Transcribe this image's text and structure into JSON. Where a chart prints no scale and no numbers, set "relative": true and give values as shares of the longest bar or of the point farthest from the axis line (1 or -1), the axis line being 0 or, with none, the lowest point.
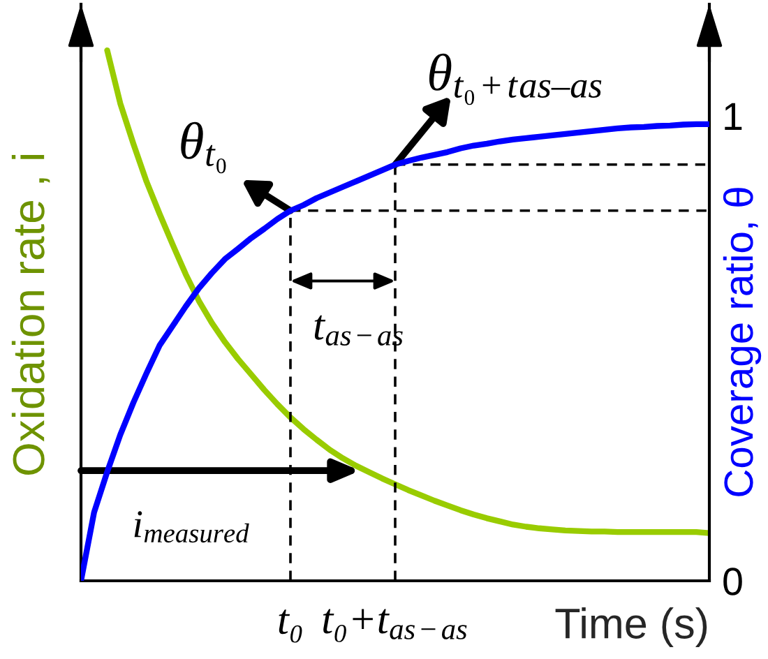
{
  "chart_data": {
    "type": "line",
    "xlabel": "Time (s)",
    "ylabel": "Oxidation rate , i",
    "y2label": "Coverage ratio, θ",
    "categories": [
      null,
      null,
      null,
      null,
      null,
      null,
      null,
      null,
      null,
      null,
      null,
      null,
      null,
      null,
      null,
      null,
      "t₀",
      null,
      null,
      null,
      null,
      null,
      null,
      null,
      "t₀+t$_{as−as}$",
      null,
      null,
      null,
      null,
      null,
      null,
      null,
      null,
      null,
      null,
      null,
      null,
      null,
      null,
      null,
      null,
      null,
      null,
      null,
      null,
      null,
      null,
      null,
      null
    ],
    "relative": true,
    "y2lim": [
      0,
      1.24
    ],
    "y2ticks": [
      0,
      1
    ],
    "series": [
      {
        "color": "#99cc00",
        "values": [
          null,
          null,
          1,
          0.9,
          0.824,
          0.753,
          0.692,
          0.634,
          0.578,
          0.528,
          0.486,
          0.45,
          0.418,
          0.389,
          0.36,
          0.333,
          0.308,
          0.286,
          0.266,
          0.247,
          0.231,
          0.217,
          0.205,
          0.193,
          0.182,
          0.171,
          0.161,
          0.151,
          0.142,
          0.133,
          0.125,
          0.118,
          0.112,
          0.106,
          0.102,
          0.099,
          0.097,
          0.095,
          0.094,
          0.093,
          0.093,
          0.092,
          0.092,
          0.092,
          0.092,
          0.092,
          0.092,
          0.092,
          0.09
        ]
      },
      {
        "color": "#0000ff",
        "axis": "y2",
        "values": [
          0,
          0.147,
          0.234,
          0.314,
          0.383,
          0.446,
          0.506,
          0.548,
          0.59,
          0.629,
          0.662,
          0.692,
          0.714,
          0.737,
          0.757,
          0.778,
          0.796,
          0.808,
          0.823,
          0.835,
          0.847,
          0.859,
          0.871,
          0.883,
          0.895,
          0.903,
          0.91,
          0.916,
          0.922,
          0.93,
          0.936,
          0.94,
          0.945,
          0.949,
          0.952,
          0.955,
          0.958,
          0.961,
          0.964,
          0.967,
          0.97,
          0.973,
          0.975,
          0.976,
          0.978,
          0.979,
          0.981,
          0.982,
          0.982
        ]
      },
      {
        "color": "#000000",
        "axis": "y2",
        "line_style": "dashed",
        "x": [
          "t₀",
          "t₀"
        ],
        "values": [
          0,
          0.796
        ]
      },
      {
        "color": "#000000",
        "axis": "y2",
        "line_style": "dashed",
        "values": [
          null,
          null,
          null,
          null,
          null,
          null,
          null,
          null,
          null,
          null,
          null,
          null,
          null,
          null,
          null,
          null,
          0.796,
          0.796,
          0.796,
          0.796,
          0.796,
          0.796,
          0.796,
          0.796,
          0.796,
          0.796,
          0.796,
          0.796,
          0.796,
          0.796,
          0.796,
          0.796,
          0.796,
          0.796,
          0.796,
          0.796,
          0.796,
          0.796,
          0.796,
          0.796,
          0.796,
          0.796,
          0.796,
          0.796,
          0.796,
          0.796,
          0.796,
          0.796,
          0.796
        ]
      },
      {
        "color": "#000000",
        "axis": "y2",
        "line_style": "dashed",
        "x": [
          "t₀+t$_{as−as}$",
          "t₀+t$_{as−as}$"
        ],
        "values": [
          0,
          0.895
        ]
      },
      {
        "color": "#000000",
        "axis": "y2",
        "line_style": "dashed",
        "values": [
          null,
          null,
          null,
          null,
          null,
          null,
          null,
          null,
          null,
          null,
          null,
          null,
          null,
          null,
          null,
          null,
          null,
          null,
          null,
          null,
          null,
          null,
          null,
          null,
          0.895,
          0.895,
          0.895,
          0.895,
          0.895,
          0.895,
          0.895,
          0.895,
          0.895,
          0.895,
          0.895,
          0.895,
          0.895,
          0.895,
          0.895,
          0.895,
          0.895,
          0.895,
          0.895,
          0.895,
          0.895,
          0.895,
          0.895,
          0.895,
          0.895
        ]
      }
    ],
    "annotations": [
      "θ$_{t₀}$",
      "θ$_{t₀+t}$$_{as–as}$",
      "t$_{as−as}$",
      "i$_{measured}$"
    ]
  }
}
